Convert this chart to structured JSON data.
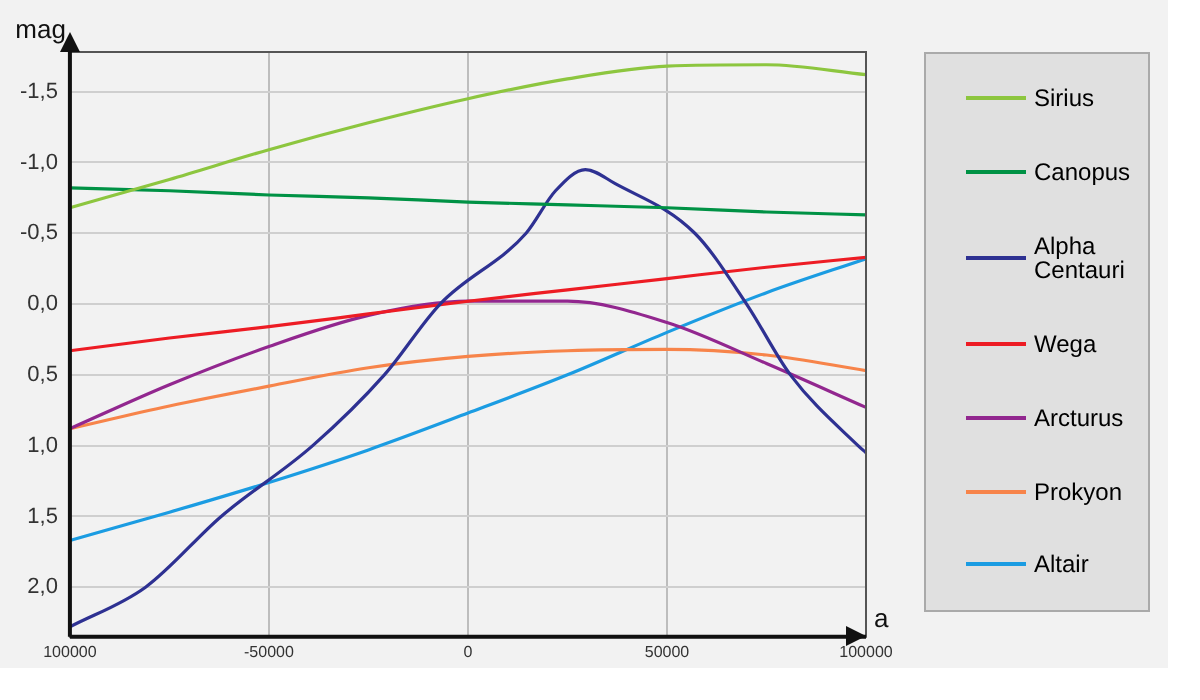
{
  "chart_data": {
    "type": "line",
    "xlabel": "a",
    "ylabel": "mag",
    "x": [
      -100000,
      -75000,
      -50000,
      -25000,
      0,
      25000,
      50000,
      75000,
      100000
    ],
    "xlim": [
      -100000,
      100000
    ],
    "xticks": [
      {
        "value": -100000,
        "label": "100000"
      },
      {
        "value": -50000,
        "label": "-50000"
      },
      0,
      50000,
      {
        "value": 100000,
        "label": "100000"
      }
    ],
    "ylim": [
      2.35,
      -1.78
    ],
    "yticks": [
      {
        "value": -1.5,
        "label": "-1,5"
      },
      {
        "value": -1,
        "label": "-1,0"
      },
      {
        "value": -0.5,
        "label": "-0,5"
      },
      {
        "value": 0,
        "label": "0,0"
      },
      {
        "value": 0.5,
        "label": "0,5"
      },
      {
        "value": 1,
        "label": "1,0"
      },
      {
        "value": 1.5,
        "label": "1,5"
      },
      {
        "value": 2,
        "label": "2,0"
      }
    ],
    "grid": true,
    "legend": "right",
    "marker": "none",
    "series": [
      {
        "name": "Sirius",
        "color": "#8dc63f",
        "values": [
          -0.68,
          -0.88,
          -1.09,
          -1.28,
          -1.45,
          -1.59,
          -1.68,
          -1.69,
          -1.62
        ]
      },
      {
        "name": "Canopus",
        "color": "#009245",
        "values": [
          -0.82,
          -0.8,
          -0.77,
          -0.75,
          -0.72,
          -0.7,
          -0.68,
          -0.65,
          -0.63
        ]
      },
      {
        "name": "Alpha Centauri",
        "color": "#2e3192",
        "x": [
          -100000,
          -81000,
          -62000,
          -39000,
          -21000,
          -7000,
          14600,
          22000,
          29500,
          37000,
          57000,
          70000,
          81000,
          98000,
          100000
        ],
        "values": [
          2.28,
          2.0,
          1.5,
          1.0,
          0.5,
          0.0,
          -0.5,
          -0.8,
          -0.95,
          -0.85,
          -0.5,
          0.0,
          0.5,
          1.0,
          1.05
        ]
      },
      {
        "name": "Wega",
        "color": "#ed1c24",
        "values": [
          0.33,
          0.24,
          0.16,
          0.07,
          -0.02,
          -0.1,
          -0.18,
          -0.26,
          -0.33
        ]
      },
      {
        "name": "Arcturus",
        "color": "#92278f",
        "values": [
          0.88,
          0.57,
          0.3,
          0.08,
          -0.02,
          -0.02,
          0.13,
          0.42,
          0.73
        ]
      },
      {
        "name": "Prokyon",
        "color": "#f7844a",
        "values": [
          0.88,
          0.72,
          0.58,
          0.45,
          0.37,
          0.33,
          0.32,
          0.36,
          0.47
        ]
      },
      {
        "name": "Altair",
        "color": "#1b9ce2",
        "values": [
          1.67,
          1.47,
          1.26,
          1.03,
          0.77,
          0.5,
          0.2,
          -0.08,
          -0.32
        ]
      }
    ]
  }
}
